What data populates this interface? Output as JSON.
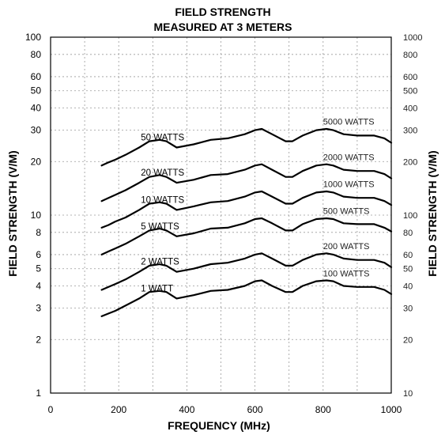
{
  "chart_data": {
    "type": "line",
    "title": "FIELD STRENGTH",
    "subtitle": "MEASURED AT 3 METERS",
    "xlabel": "FREQUENCY (MHz)",
    "ylabel": "FIELD STRENGTH (V/M)",
    "ylabel_right": "FIELD STRENGTH (V/M)",
    "xlim": [
      0,
      1000
    ],
    "ylim": [
      1,
      100
    ],
    "ylim_right": [
      10,
      1000
    ],
    "yscale": "log",
    "grid": true,
    "x_ticks": [
      "0",
      "200",
      "400",
      "600",
      "800",
      "1000"
    ],
    "y_ticks_left": [
      {
        "value": 1,
        "label": "1"
      },
      {
        "value": 2,
        "label": "2"
      },
      {
        "value": 3,
        "label": "3"
      },
      {
        "value": 4,
        "label": "4"
      },
      {
        "value": 5,
        "label": "5"
      },
      {
        "value": 6,
        "label": "6"
      },
      {
        "value": 8,
        "label": "8"
      },
      {
        "value": 10,
        "label": "10"
      },
      {
        "value": 20,
        "label": "20"
      },
      {
        "value": 30,
        "label": "30"
      },
      {
        "value": 40,
        "label": "40"
      },
      {
        "value": 50,
        "label": "50"
      },
      {
        "value": 60,
        "label": "60"
      },
      {
        "value": 80,
        "label": "80"
      },
      {
        "value": 100,
        "label": "100"
      }
    ],
    "y_ticks_right": [
      {
        "value": 10,
        "label": "10"
      },
      {
        "value": 20,
        "label": "20"
      },
      {
        "value": 30,
        "label": "30"
      },
      {
        "value": 40,
        "label": "40"
      },
      {
        "value": 50,
        "label": "50"
      },
      {
        "value": 60,
        "label": "60"
      },
      {
        "value": 80,
        "label": "80"
      },
      {
        "value": 100,
        "label": "100"
      },
      {
        "value": 200,
        "label": "200"
      },
      {
        "value": 300,
        "label": "300"
      },
      {
        "value": 400,
        "label": "400"
      },
      {
        "value": 500,
        "label": "500"
      },
      {
        "value": 600,
        "label": "600"
      },
      {
        "value": 800,
        "label": "800"
      },
      {
        "value": 1000,
        "label": "1000"
      }
    ],
    "x": [
      150,
      170,
      190,
      220,
      260,
      290,
      320,
      340,
      370,
      420,
      470,
      520,
      570,
      600,
      620,
      650,
      690,
      710,
      740,
      780,
      810,
      830,
      860,
      900,
      950,
      980,
      1000
    ],
    "series": [
      {
        "name": "50 WATTS",
        "right_name": "5000 WATTS",
        "values": [
          19.0,
          19.8,
          20.5,
          21.8,
          24.0,
          26.0,
          26.5,
          26.0,
          24.0,
          25.0,
          26.5,
          27.0,
          28.5,
          30.0,
          30.5,
          28.5,
          26.0,
          26.0,
          28.0,
          30.0,
          30.5,
          30.0,
          28.5,
          28.0,
          28.0,
          27.0,
          25.5
        ]
      },
      {
        "name": "20 WATTS",
        "right_name": "2000 WATTS",
        "values": [
          12.0,
          12.5,
          13.0,
          13.8,
          15.2,
          16.4,
          16.8,
          16.4,
          15.2,
          15.8,
          16.8,
          17.0,
          18.0,
          19.0,
          19.3,
          18.0,
          16.4,
          16.4,
          17.7,
          19.0,
          19.3,
          19.0,
          18.0,
          17.7,
          17.7,
          17.0,
          16.1
        ]
      },
      {
        "name": "10 WATTS",
        "right_name": "1000 WATTS",
        "values": [
          8.5,
          8.8,
          9.2,
          9.7,
          10.7,
          11.6,
          11.8,
          11.6,
          10.7,
          11.2,
          11.8,
          12.0,
          12.7,
          13.4,
          13.6,
          12.7,
          11.6,
          11.6,
          12.5,
          13.4,
          13.6,
          13.4,
          12.7,
          12.5,
          12.5,
          12.0,
          11.4
        ]
      },
      {
        "name": "5 WATTS",
        "right_name": "500 WATTS",
        "values": [
          6.0,
          6.25,
          6.5,
          6.9,
          7.6,
          8.2,
          8.4,
          8.2,
          7.6,
          7.9,
          8.4,
          8.5,
          9.0,
          9.5,
          9.6,
          9.0,
          8.2,
          8.2,
          8.9,
          9.5,
          9.6,
          9.5,
          9.0,
          8.9,
          8.9,
          8.5,
          8.1
        ]
      },
      {
        "name": "2 WATTS",
        "right_name": "200 WATTS",
        "values": [
          3.8,
          3.95,
          4.1,
          4.35,
          4.8,
          5.2,
          5.3,
          5.2,
          4.8,
          5.0,
          5.3,
          5.4,
          5.7,
          6.0,
          6.1,
          5.7,
          5.2,
          5.2,
          5.6,
          6.0,
          6.1,
          6.0,
          5.7,
          5.6,
          5.6,
          5.4,
          5.1
        ]
      },
      {
        "name": "1 WATT",
        "right_name": "100 WATTS",
        "values": [
          2.7,
          2.8,
          2.9,
          3.1,
          3.4,
          3.7,
          3.75,
          3.7,
          3.4,
          3.55,
          3.75,
          3.8,
          4.0,
          4.25,
          4.3,
          4.0,
          3.7,
          3.7,
          4.0,
          4.25,
          4.3,
          4.25,
          4.0,
          3.95,
          3.95,
          3.8,
          3.6
        ]
      }
    ]
  }
}
